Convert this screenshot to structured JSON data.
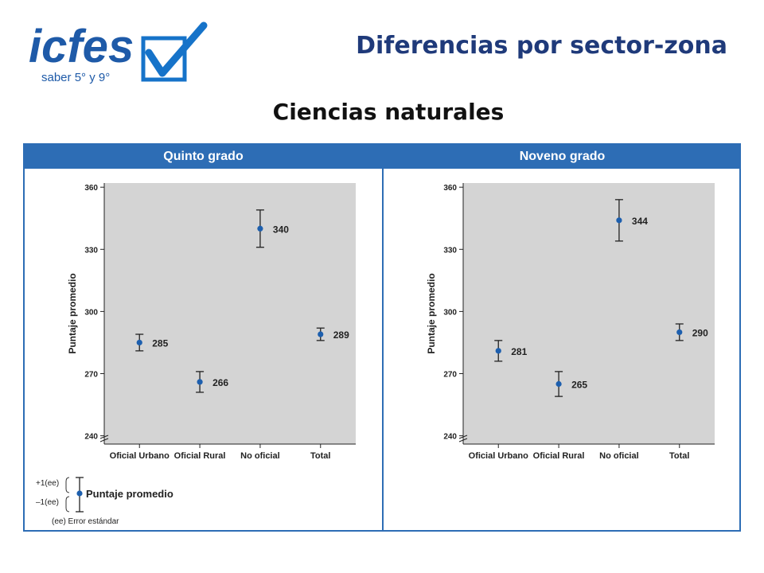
{
  "header": {
    "logo_text": "icfes",
    "logo_subtext": "saber 5° y 9°",
    "title": "Diferencias por sector-zona",
    "subtitle": "Ciencias naturales"
  },
  "colors": {
    "title_blue": "#1f3a7a",
    "frame_blue": "#2d6db5",
    "logo_blue": "#1e5aa8",
    "check_blue": "#1673c9",
    "plot_bg": "#d4d4d4",
    "marker": "#1d5fae"
  },
  "chart_data": [
    {
      "type": "scatter",
      "title": "Quinto grado",
      "ylabel": "Puntaje promedio",
      "categories": [
        "Oficial Urbano",
        "Oficial Rural",
        "No oficial",
        "Total"
      ],
      "values": [
        285,
        266,
        340,
        289
      ],
      "value_labels": [
        "285",
        "266",
        "340",
        "289"
      ],
      "error_bars": [
        4,
        5,
        9,
        3
      ],
      "ylim": [
        236,
        362
      ],
      "yticks": [
        240,
        270,
        300,
        330,
        360
      ],
      "grid": false
    },
    {
      "type": "scatter",
      "title": "Noveno grado",
      "ylabel": "Puntaje promedio",
      "categories": [
        "Oficial Urbano",
        "Oficial Rural",
        "No oficial",
        "Total"
      ],
      "values": [
        281,
        265,
        344,
        290
      ],
      "value_labels": [
        "281",
        "265",
        "344",
        "290"
      ],
      "error_bars": [
        5,
        6,
        10,
        4
      ],
      "ylim": [
        236,
        362
      ],
      "yticks": [
        240,
        270,
        300,
        330,
        360
      ],
      "grid": false
    }
  ],
  "legend": {
    "upper": "+1(ee)",
    "lower": "–1(ee)",
    "marker_label": "Puntaje promedio",
    "note": "(ee)  Error estándar"
  }
}
